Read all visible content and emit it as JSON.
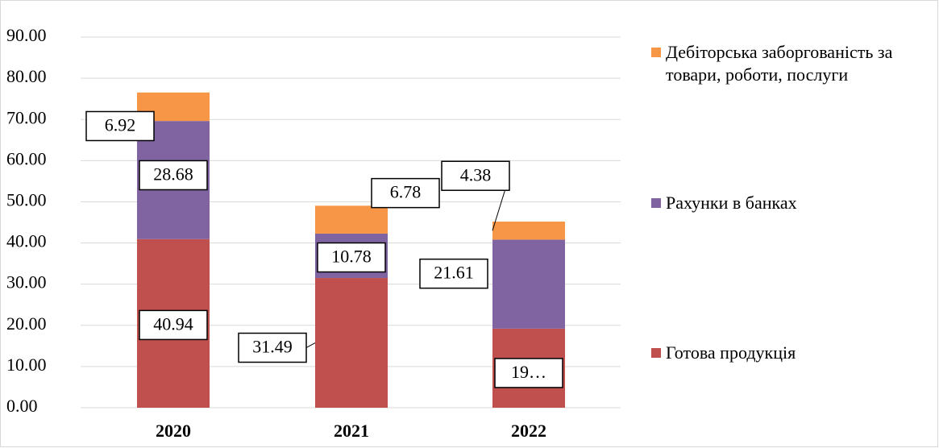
{
  "chart_data": {
    "type": "stacked_bar",
    "categories": [
      "2020",
      "2021",
      "2022"
    ],
    "series": [
      {
        "name": "Готова продукція",
        "color": "#c0504d",
        "values": [
          40.94,
          31.49,
          19.2
        ],
        "value_labels": [
          "40.94",
          "31.49",
          "19…"
        ]
      },
      {
        "name": "Рахунки в банках",
        "color": "#8064a2",
        "values": [
          28.68,
          10.78,
          21.61
        ]
      },
      {
        "name": "Дебіторська заборгованість за товари, роботи, послуги",
        "color": "#f79646",
        "values": [
          6.92,
          6.78,
          4.38
        ]
      }
    ],
    "ylim": [
      0,
      90
    ],
    "yticks": [
      {
        "value": 0,
        "label": "0.00"
      },
      {
        "value": 10,
        "label": "10.00"
      },
      {
        "value": 20,
        "label": "20.00"
      },
      {
        "value": 30,
        "label": "30.00"
      },
      {
        "value": 40,
        "label": "40.00"
      },
      {
        "value": 50,
        "label": "50.00"
      },
      {
        "value": 60,
        "label": "60.00"
      },
      {
        "value": 70,
        "label": "70.00"
      },
      {
        "value": 80,
        "label": "80.00"
      },
      {
        "value": 90,
        "label": "90.00"
      }
    ],
    "grid": true,
    "legend": "right"
  }
}
